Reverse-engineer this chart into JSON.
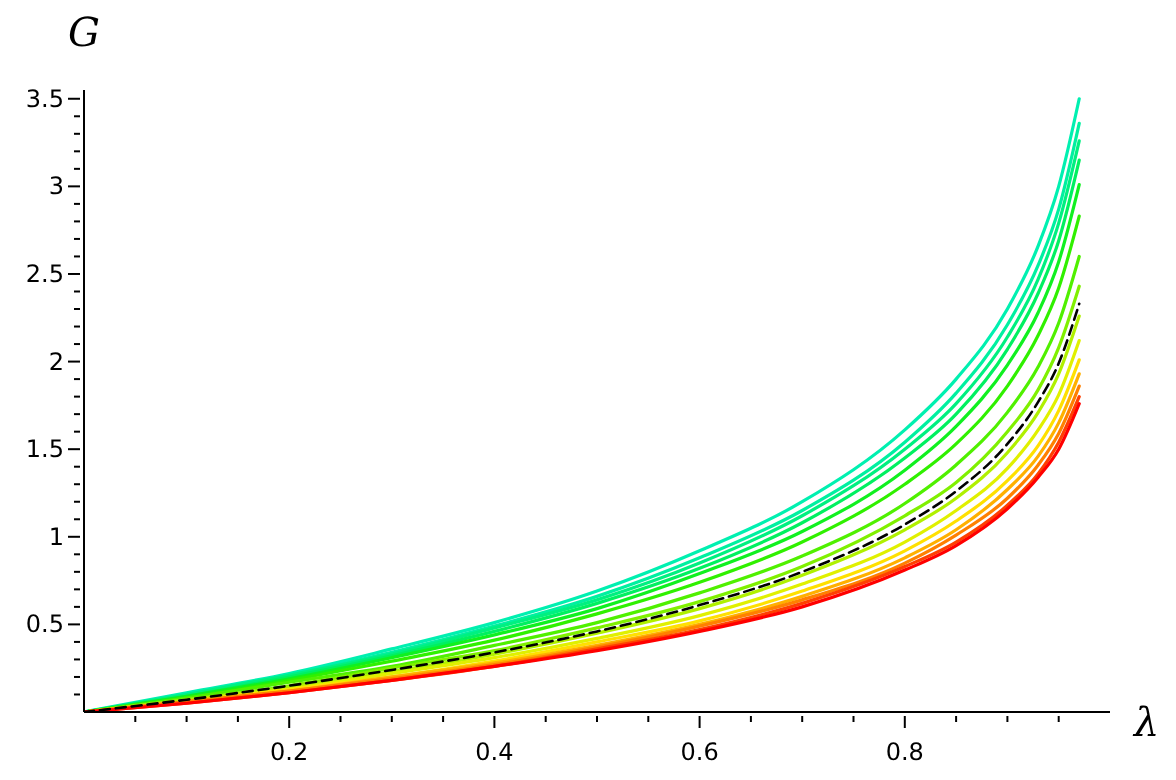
{
  "chart_data": {
    "type": "line",
    "xlabel": "λ",
    "ylabel": "G",
    "marker": "none",
    "line_style": "solid",
    "x": [
      0,
      0.1,
      0.2,
      0.3,
      0.4,
      0.5,
      0.6,
      0.7,
      0.8,
      0.85,
      0.9,
      0.93,
      0.95,
      0.97
    ],
    "xlim": [
      0,
      1
    ],
    "ylim": [
      0,
      3.55
    ],
    "xticks": [
      {
        "value": 0.05,
        "label": null
      },
      {
        "value": 0.1,
        "label": null
      },
      {
        "value": 0.15,
        "label": null
      },
      {
        "value": 0.2,
        "label": "0.2"
      },
      {
        "value": 0.25,
        "label": null
      },
      {
        "value": 0.3,
        "label": null
      },
      {
        "value": 0.35,
        "label": null
      },
      {
        "value": 0.4,
        "label": "0.4"
      },
      {
        "value": 0.45,
        "label": null
      },
      {
        "value": 0.5,
        "label": null
      },
      {
        "value": 0.55,
        "label": null
      },
      {
        "value": 0.6,
        "label": "0.6"
      },
      {
        "value": 0.65,
        "label": null
      },
      {
        "value": 0.7,
        "label": null
      },
      {
        "value": 0.75,
        "label": null
      },
      {
        "value": 0.8,
        "label": "0.8"
      },
      {
        "value": 0.85,
        "label": null
      },
      {
        "value": 0.9,
        "label": null
      },
      {
        "value": 0.95,
        "label": null
      }
    ],
    "yticks": [
      {
        "value": 0.1,
        "label": null
      },
      {
        "value": 0.2,
        "label": null
      },
      {
        "value": 0.3,
        "label": null
      },
      {
        "value": 0.4,
        "label": null
      },
      {
        "value": 0.5,
        "label": "0.5"
      },
      {
        "value": 0.6,
        "label": null
      },
      {
        "value": 0.7,
        "label": null
      },
      {
        "value": 0.8,
        "label": null
      },
      {
        "value": 0.9,
        "label": null
      },
      {
        "value": 1,
        "label": "1"
      },
      {
        "value": 1.1,
        "label": null
      },
      {
        "value": 1.2,
        "label": null
      },
      {
        "value": 1.3,
        "label": null
      },
      {
        "value": 1.4,
        "label": null
      },
      {
        "value": 1.5,
        "label": "1.5"
      },
      {
        "value": 1.6,
        "label": null
      },
      {
        "value": 1.7,
        "label": null
      },
      {
        "value": 1.8,
        "label": null
      },
      {
        "value": 1.9,
        "label": null
      },
      {
        "value": 2,
        "label": "2"
      },
      {
        "value": 2.1,
        "label": null
      },
      {
        "value": 2.2,
        "label": null
      },
      {
        "value": 2.3,
        "label": null
      },
      {
        "value": 2.4,
        "label": null
      },
      {
        "value": 2.5,
        "label": "2.5"
      },
      {
        "value": 2.6,
        "label": null
      },
      {
        "value": 2.7,
        "label": null
      },
      {
        "value": 2.8,
        "label": null
      },
      {
        "value": 2.9,
        "label": null
      },
      {
        "value": 3,
        "label": "3"
      },
      {
        "value": 3.1,
        "label": null
      },
      {
        "value": 3.2,
        "label": null
      },
      {
        "value": 3.3,
        "label": null
      },
      {
        "value": 3.4,
        "label": null
      },
      {
        "value": 3.5,
        "label": "3.5"
      }
    ],
    "series": [
      {
        "color": "#00f0b0",
        "values": [
          0,
          0.11,
          0.22,
          0.36,
          0.51,
          0.69,
          0.92,
          1.2,
          1.61,
          1.9,
          2.3,
          2.66,
          3,
          3.5
        ]
      },
      {
        "color": "#00f0a0",
        "values": [
          0,
          0.1,
          0.21,
          0.34,
          0.49,
          0.66,
          0.88,
          1.15,
          1.54,
          1.82,
          2.21,
          2.55,
          2.87,
          3.36
        ]
      },
      {
        "color": "#00f080",
        "values": [
          0,
          0.1,
          0.21,
          0.33,
          0.48,
          0.64,
          0.85,
          1.12,
          1.5,
          1.76,
          2.14,
          2.47,
          2.79,
          3.26
        ]
      },
      {
        "color": "#00f060",
        "values": [
          0,
          0.09,
          0.2,
          0.32,
          0.46,
          0.62,
          0.82,
          1.08,
          1.45,
          1.7,
          2.07,
          2.39,
          2.69,
          3.15
        ]
      },
      {
        "color": "#10f020",
        "values": [
          0,
          0.09,
          0.19,
          0.31,
          0.44,
          0.59,
          0.79,
          1.03,
          1.38,
          1.63,
          1.98,
          2.28,
          2.57,
          3.01
        ]
      },
      {
        "color": "#30f000",
        "values": [
          0,
          0.08,
          0.18,
          0.29,
          0.41,
          0.56,
          0.74,
          0.97,
          1.3,
          1.53,
          1.86,
          2.15,
          2.42,
          2.83
        ]
      },
      {
        "color": "#50f000",
        "values": [
          0,
          0.08,
          0.17,
          0.26,
          0.38,
          0.51,
          0.68,
          0.89,
          1.19,
          1.41,
          1.71,
          1.97,
          2.22,
          2.6
        ]
      },
      {
        "color": "#80f000",
        "values": [
          0,
          0.07,
          0.15,
          0.25,
          0.35,
          0.48,
          0.63,
          0.83,
          1.12,
          1.31,
          1.6,
          1.84,
          2.08,
          2.43
        ]
      },
      {
        "color": "#b0f000",
        "values": [
          0,
          0.07,
          0.14,
          0.23,
          0.33,
          0.45,
          0.59,
          0.78,
          1.04,
          1.22,
          1.48,
          1.71,
          1.93,
          2.26
        ]
      },
      {
        "color": "#e0f000",
        "values": [
          0,
          0.06,
          0.13,
          0.22,
          0.31,
          0.42,
          0.55,
          0.73,
          0.97,
          1.15,
          1.39,
          1.61,
          1.81,
          2.12
        ]
      },
      {
        "color": "#ffe000",
        "values": [
          0,
          0.06,
          0.13,
          0.2,
          0.29,
          0.4,
          0.52,
          0.69,
          0.92,
          1.09,
          1.32,
          1.52,
          1.72,
          2.01
        ]
      },
      {
        "color": "#ffb000",
        "values": [
          0,
          0.06,
          0.12,
          0.2,
          0.28,
          0.38,
          0.5,
          0.66,
          0.88,
          1.04,
          1.27,
          1.46,
          1.65,
          1.93
        ]
      },
      {
        "color": "#ff8000",
        "values": [
          0,
          0.06,
          0.12,
          0.19,
          0.27,
          0.37,
          0.49,
          0.64,
          0.85,
          1.01,
          1.22,
          1.41,
          1.59,
          1.86
        ]
      },
      {
        "color": "#ff4000",
        "values": [
          0,
          0.05,
          0.11,
          0.18,
          0.26,
          0.36,
          0.47,
          0.62,
          0.83,
          0.97,
          1.18,
          1.36,
          1.54,
          1.8
        ]
      },
      {
        "color": "#ff0000",
        "values": [
          0,
          0.05,
          0.11,
          0.18,
          0.26,
          0.35,
          0.46,
          0.6,
          0.81,
          0.95,
          1.16,
          1.34,
          1.5,
          1.76
        ]
      },
      {
        "color": "#000000",
        "line_style": "dashed",
        "values": [
          0,
          0.07,
          0.15,
          0.24,
          0.34,
          0.46,
          0.61,
          0.8,
          1.07,
          1.26,
          1.53,
          1.77,
          1.99,
          2.33
        ]
      }
    ]
  }
}
